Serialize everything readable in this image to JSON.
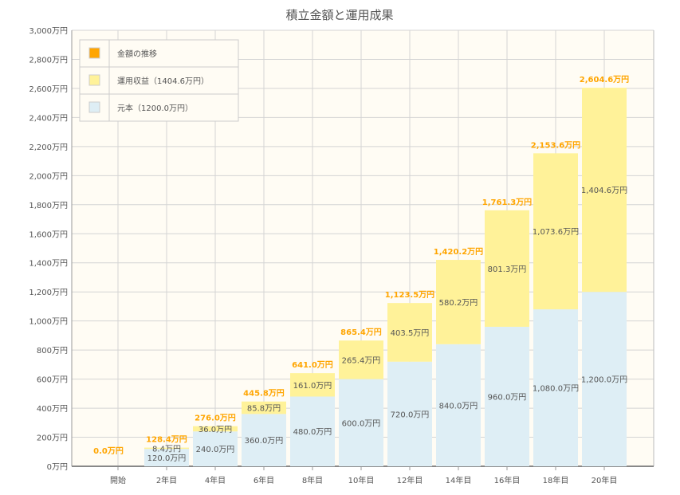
{
  "chart_data": {
    "type": "bar",
    "stacked": true,
    "title": "積立金額と運用成果",
    "categories": [
      "開始",
      "2年目",
      "4年目",
      "6年目",
      "8年目",
      "10年目",
      "12年目",
      "14年目",
      "16年目",
      "18年目",
      "20年目"
    ],
    "series": [
      {
        "name": "元本（1200.0万円）",
        "color": "#deeef5",
        "values": [
          0,
          120.0,
          240.0,
          360.0,
          480.0,
          600.0,
          720.0,
          840.0,
          960.0,
          1080.0,
          1200.0
        ]
      },
      {
        "name": "運用収益（1404.6万円）",
        "color": "#fff299",
        "values": [
          0,
          8.4,
          36.0,
          85.8,
          161.0,
          265.4,
          403.5,
          580.2,
          801.3,
          1073.6,
          1404.6
        ]
      }
    ],
    "totals": {
      "name": "金額の推移",
      "color": "#ffa500",
      "values": [
        0.0,
        128.4,
        276.0,
        445.8,
        641.0,
        865.4,
        1123.5,
        1420.2,
        1761.3,
        2153.6,
        2604.6
      ]
    },
    "unit": "万円",
    "ylim": [
      0,
      3000
    ],
    "yticks": [
      0,
      200,
      400,
      600,
      800,
      1000,
      1200,
      1400,
      1600,
      1800,
      2000,
      2200,
      2400,
      2600,
      2800,
      3000
    ],
    "grid": true,
    "legend": "top-left",
    "legend_order": [
      "金額の推移",
      "運用収益（1404.6万円）",
      "元本（1200.0万円）"
    ]
  }
}
